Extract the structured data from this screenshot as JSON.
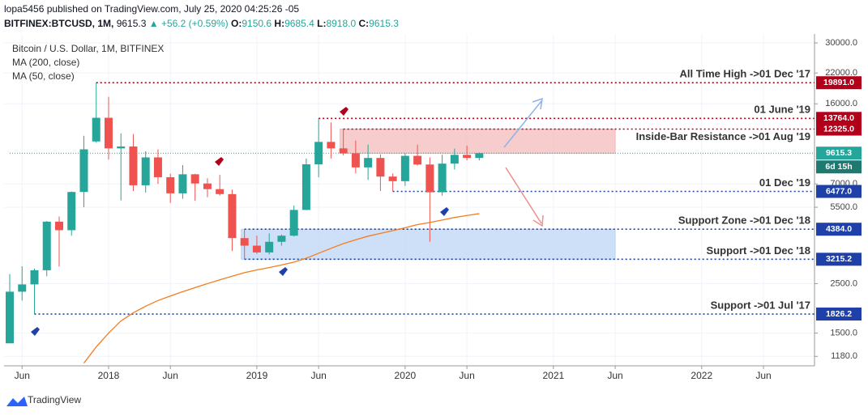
{
  "header": {
    "published": "lopa5456 published on TradingView.com, July 25, 2020 04:25:26 -05",
    "symbol": "BITFINEX:BTCUSD, 1M,",
    "last": "9615.3",
    "change": "▲ +56.2 (+0.59%)",
    "o_label": "O:",
    "o": "9150.6",
    "h_label": "H:",
    "h": "9685.4",
    "l_label": "L:",
    "l": "8918.0",
    "c_label": "C:",
    "c": "9615.3"
  },
  "footer": {
    "brand": "TradingView"
  },
  "chart_data": {
    "type": "candlestick",
    "title": "Bitcoin / U.S. Dollar, 1M, BITFINEX",
    "x": [
      "2017-05",
      "2017-06",
      "2017-07",
      "2017-08",
      "2017-09",
      "2017-10",
      "2017-11",
      "2017-12",
      "2018-01",
      "2018-02",
      "2018-03",
      "2018-04",
      "2018-05",
      "2018-06",
      "2018-07",
      "2018-08",
      "2018-09",
      "2018-10",
      "2018-11",
      "2018-12",
      "2019-01",
      "2019-02",
      "2019-03",
      "2019-04",
      "2019-05",
      "2019-06",
      "2019-07",
      "2019-08",
      "2019-09",
      "2019-10",
      "2019-11",
      "2019-12",
      "2020-01",
      "2020-02",
      "2020-03",
      "2020-04",
      "2020-05",
      "2020-06",
      "2020-07"
    ],
    "open": [
      1350,
      2300,
      2480,
      2870,
      4740,
      4340,
      6440,
      10850,
      13850,
      10100,
      10300,
      6900,
      9200,
      7500,
      6350,
      7730,
      7030,
      6630,
      6300,
      4000,
      3700,
      3450,
      3850,
      4100,
      5350,
      8570,
      10800,
      10100,
      9600,
      8300,
      9150,
      7550,
      7200,
      9350,
      8550,
      6420,
      8630,
      9450,
      9150.6
    ],
    "high": [
      2760,
      2990,
      2920,
      4770,
      5000,
      6470,
      11500,
      19891,
      17200,
      11800,
      11700,
      9800,
      10000,
      7780,
      8500,
      7770,
      7420,
      7680,
      6600,
      4400,
      4100,
      4200,
      4150,
      5600,
      9100,
      13764,
      13200,
      12325,
      10950,
      10500,
      9500,
      7800,
      9600,
      10500,
      9200,
      9460,
      10080,
      10400,
      9685.4
    ],
    "low": [
      1350,
      2100,
      1826.2,
      2700,
      2980,
      4100,
      5500,
      10700,
      9000,
      5900,
      6500,
      6400,
      7000,
      5750,
      6000,
      5880,
      6100,
      6200,
      3500,
      3215.2,
      3400,
      3380,
      3700,
      4070,
      5340,
      7500,
      9100,
      9400,
      7800,
      7300,
      6500,
      6477,
      6850,
      8450,
      3850,
      6200,
      8120,
      8920,
      8918
    ],
    "close": [
      2300,
      2480,
      2870,
      4740,
      4340,
      6440,
      10000,
      13850,
      10100,
      10300,
      6900,
      9200,
      7500,
      6350,
      7730,
      7030,
      6630,
      6300,
      4000,
      3700,
      3450,
      3850,
      4100,
      5350,
      8570,
      10800,
      10100,
      9600,
      8300,
      9150,
      7550,
      7200,
      9350,
      8550,
      6420,
      8630,
      9450,
      9150,
      9615.3
    ],
    "up_color": "#26a69a",
    "down_color": "#ef5350",
    "ma_series": [
      {
        "name": "MA (200, close)",
        "color": "#2196f3",
        "values": [
          null,
          null,
          null,
          null,
          null,
          null,
          null,
          null,
          null,
          null,
          null,
          null,
          null,
          null,
          null,
          null,
          null,
          null,
          null,
          null,
          null,
          null,
          null,
          null,
          null,
          null,
          null,
          null,
          null,
          null,
          null,
          null,
          null,
          null,
          null,
          null,
          null,
          null,
          null
        ]
      },
      {
        "name": "MA (50, close)",
        "color": "#f57c1f",
        "values": [
          null,
          null,
          null,
          null,
          null,
          null,
          1100,
          1300,
          1500,
          1700,
          1850,
          1980,
          2100,
          2200,
          2300,
          2400,
          2500,
          2600,
          2700,
          2800,
          2880,
          2950,
          3030,
          3120,
          3250,
          3420,
          3600,
          3780,
          3930,
          4080,
          4200,
          4320,
          4450,
          4600,
          4700,
          4820,
          4950,
          5050,
          5150
        ]
      }
    ],
    "log_scale": true,
    "xlim": [
      "2017-05",
      "2022-10"
    ],
    "xticks": [
      {
        "value": "2017-06",
        "label": "Jun"
      },
      {
        "value": "2018-01",
        "label": "2018"
      },
      {
        "value": "2018-06",
        "label": "Jun"
      },
      {
        "value": "2019-01",
        "label": "2019"
      },
      {
        "value": "2019-06",
        "label": "Jun"
      },
      {
        "value": "2020-01",
        "label": "2020"
      },
      {
        "value": "2020-06",
        "label": "Jun"
      },
      {
        "value": "2021-01",
        "label": "2021"
      },
      {
        "value": "2021-06",
        "label": "Jun"
      },
      {
        "value": "2022-01",
        "label": "2022"
      },
      {
        "value": "2022-06",
        "label": "Jun"
      }
    ],
    "ylim": [
      1070,
      32900
    ],
    "yticks": [
      {
        "value": 30000,
        "label": "30000.0"
      },
      {
        "value": 22000,
        "label": "22000.0"
      },
      {
        "value": 16000,
        "label": "16000.0"
      },
      {
        "value": 7000,
        "label": "7000.0"
      },
      {
        "value": 5500,
        "label": "5500.0"
      },
      {
        "value": 2500,
        "label": "2500.0"
      },
      {
        "value": 1500,
        "label": "1500.0"
      },
      {
        "value": 1180,
        "label": "1180.0"
      }
    ],
    "grid": true,
    "zones": [
      {
        "from": "2019-08",
        "to": "2021-06",
        "top": 12325,
        "bottom": 9600,
        "color": "#f4b6b6"
      },
      {
        "from": "2018-12",
        "to": "2021-06",
        "top": 4384,
        "bottom": 3215.2,
        "color": "#b9d3f5"
      }
    ],
    "levels": [
      {
        "value": 19891,
        "label": "19891.0",
        "from": "2017-12",
        "note": "All Time High ->01 Dec '17",
        "color": "#b2001a"
      },
      {
        "value": 13764,
        "label": "13764.0",
        "from": "2019-06",
        "note": "01 June '19",
        "color": "#b2001a"
      },
      {
        "value": 12325,
        "label": "12325.0",
        "from": "2019-08",
        "note": "Inside-Bar Resistance ->01 Aug '19",
        "color": "#b2001a"
      },
      {
        "value": 9615.3,
        "label": "9615.3",
        "from": "2017-05",
        "countdown": "6d 15h",
        "color": "#26a69a"
      },
      {
        "value": 6477,
        "label": "6477.0",
        "from": "2019-12",
        "note": "01 Dec '19",
        "color": "#1e40a8"
      },
      {
        "value": 4384,
        "label": "4384.0",
        "from": "2018-12",
        "note": "Support Zone ->01 Dec '18",
        "color": "#1e40a8"
      },
      {
        "value": 3215.2,
        "label": "3215.2",
        "from": "2018-12",
        "note": "Support ->01 Dec '18",
        "color": "#1e40a8"
      },
      {
        "value": 1826.2,
        "label": "1826.2",
        "from": "2017-07",
        "note": "Support ->01 Jul '17",
        "color": "#1e40a8"
      }
    ]
  }
}
